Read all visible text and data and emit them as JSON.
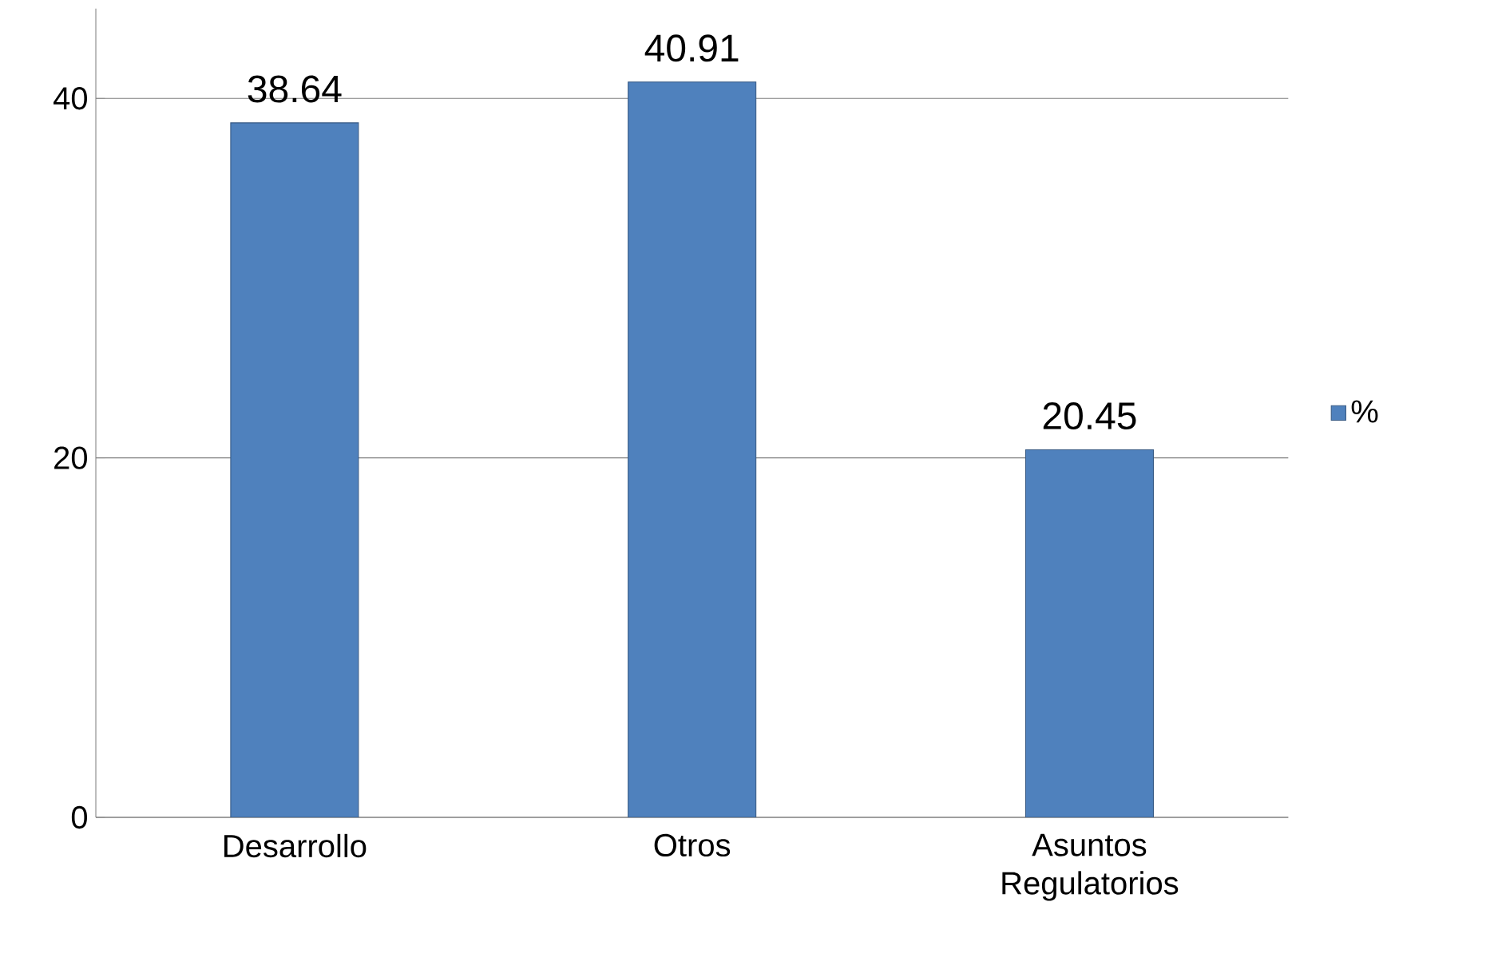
{
  "chart_data": {
    "type": "bar",
    "categories": [
      "Desarrollo",
      "Otros",
      "Asuntos Regulatorios"
    ],
    "series": [
      {
        "name": "%",
        "color": "#4f81bd",
        "values": [
          38.64,
          40.91,
          20.45
        ]
      }
    ],
    "ylim": [
      0,
      45
    ],
    "yticks": [
      0,
      20,
      40
    ],
    "grid": "y",
    "legend": "right",
    "data_labels": true
  }
}
